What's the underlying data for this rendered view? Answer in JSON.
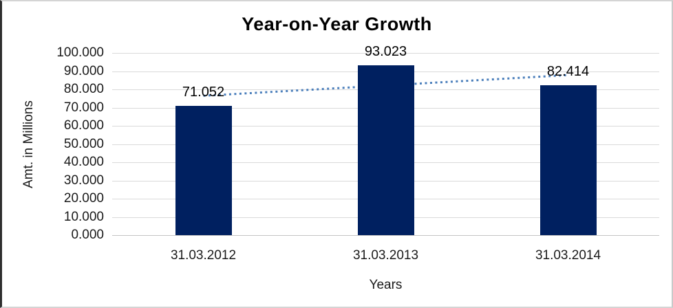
{
  "chart_data": {
    "type": "bar",
    "title": "Year-on-Year Growth",
    "xlabel": "Years",
    "ylabel": "Amt. in Millions",
    "categories": [
      "31.03.2012",
      "31.03.2013",
      "31.03.2014"
    ],
    "values": [
      71.052,
      93.023,
      82.414
    ],
    "data_labels": [
      "71.052",
      "93.023",
      "82.414"
    ],
    "y_ticks": [
      "0.000",
      "10.000",
      "20.000",
      "30.000",
      "40.000",
      "50.000",
      "60.000",
      "70.000",
      "80.000",
      "90.000",
      "100.000"
    ],
    "ylim": [
      0,
      100
    ],
    "grid": true,
    "legend": false,
    "bar_color": "#002060",
    "trendline": {
      "type": "linear",
      "style": "dotted",
      "color": "#4a7ebb"
    },
    "gridline_color": "#d9d9d9",
    "axis_line_color": "#c3c3c3",
    "text_color": "#1a1a1a"
  }
}
